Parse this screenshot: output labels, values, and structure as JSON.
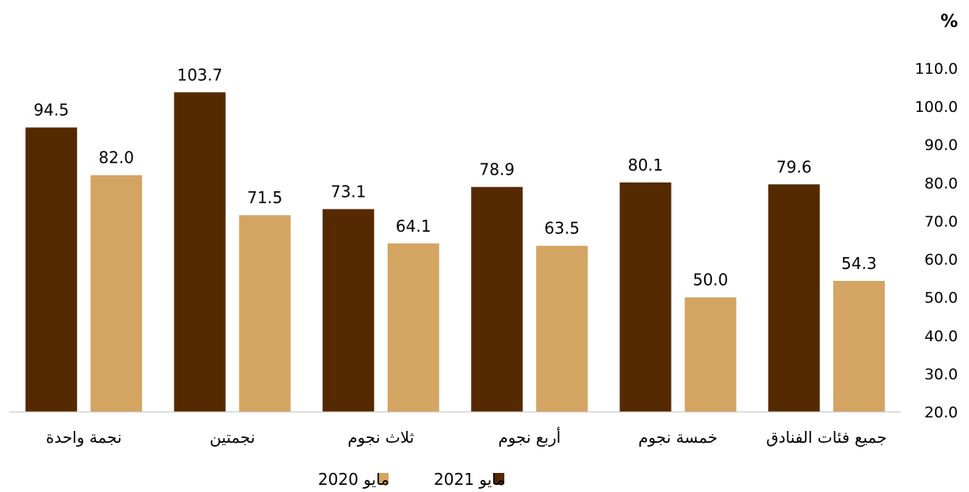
{
  "chart_data": {
    "type": "bar",
    "unit_label": "%",
    "categories": [
      "نجمة واحدة",
      "نجمتين",
      "ثلاث نجوم",
      "أربع نجوم",
      "خمسة نجوم",
      "جميع فئات الفنادق"
    ],
    "series": [
      {
        "name": "مايو 2021",
        "color": "#562A00",
        "values": [
          94.5,
          103.7,
          73.1,
          78.9,
          80.1,
          79.6
        ]
      },
      {
        "name": "مايو 2020",
        "color": "#D4A462",
        "values": [
          82.0,
          71.5,
          64.1,
          63.5,
          50.0,
          54.3
        ]
      }
    ],
    "value_labels": [
      [
        "94.5",
        "103.7",
        "73.1",
        "78.9",
        "80.1",
        "79.6"
      ],
      [
        "82.0",
        "71.5",
        "64.1",
        "63.5",
        "50.0",
        "54.3"
      ]
    ],
    "yticks": [
      "20.0",
      "30.0",
      "40.0",
      "50.0",
      "60.0",
      "70.0",
      "80.0",
      "90.0",
      "100.0",
      "110.0"
    ],
    "ylim": [
      20,
      110
    ],
    "y_axis_side": "right",
    "grid": false,
    "legend_position": "bottom-center",
    "axis_color": "#BFBFBF"
  }
}
